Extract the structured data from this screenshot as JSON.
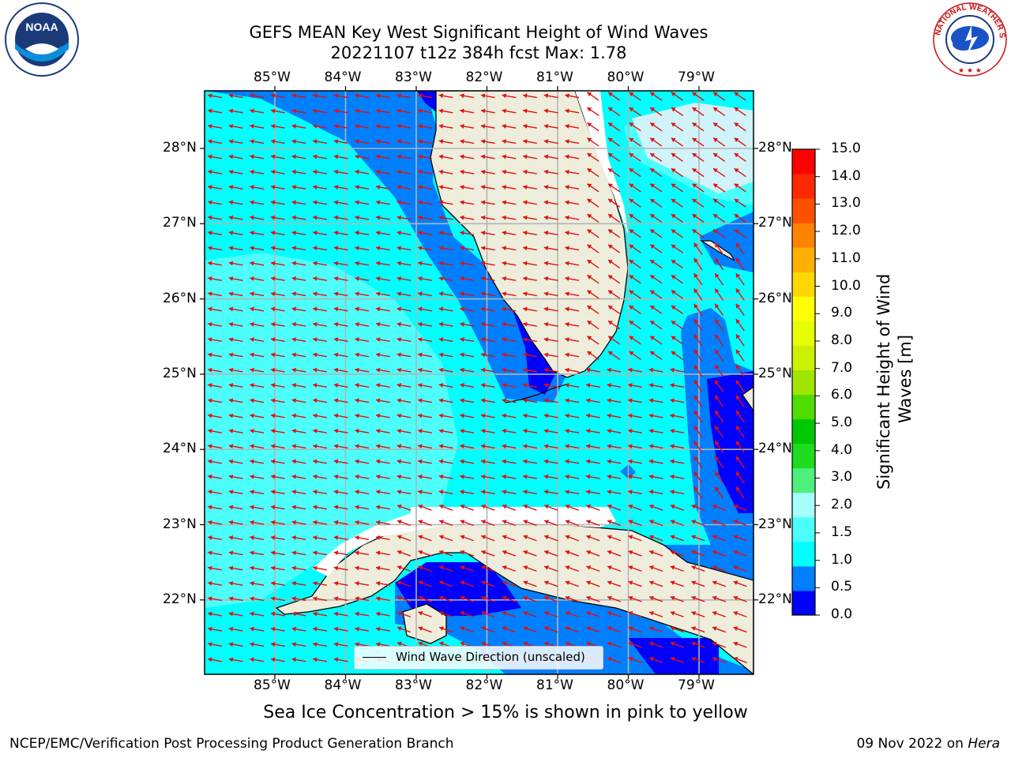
{
  "title": {
    "line1": "GEFS MEAN Key West Significant Height of Wind Waves",
    "line2": "20221107 t12z 384h fcst   Max: 1.78"
  },
  "logos": {
    "left_text": "NOAA",
    "left_ring_text": "NATIONAL OCEANIC AND ATMOSPHERIC ADMINISTRATION · U.S. DEPARTMENT OF COMMERCE",
    "right_ring_text": "NATIONAL WEATHER SERVICE"
  },
  "map": {
    "lon_labels": [
      "85°W",
      "84°W",
      "83°W",
      "82°W",
      "81°W",
      "80°W",
      "79°W"
    ],
    "lat_labels": [
      "28°N",
      "27°N",
      "26°N",
      "25°N",
      "24°N",
      "23°N",
      "22°N"
    ],
    "colors": {
      "ocean_base": "#00ffff",
      "ocean_light": "#4dfffb",
      "ocean_mid": "#007fff",
      "ocean_deep": "#0000ff",
      "land": "#eeeddc",
      "pink": "#cff3f8",
      "arrow": "#e01010",
      "grid": "#b4b4b4"
    },
    "legend_label": "Wind Wave Direction (unscaled)"
  },
  "colorbar": {
    "title": "Significant Height of Wind Waves [m]",
    "ticks": [
      "15.0",
      "14.0",
      "13.0",
      "12.0",
      "11.0",
      "10.0",
      "9.0",
      "8.0",
      "7.0",
      "6.0",
      "5.0",
      "4.0",
      "3.0",
      "2.0",
      "1.5",
      "1.0",
      "0.5",
      "0.0"
    ],
    "colors": [
      "#0000ff",
      "#007fff",
      "#00ffff",
      "#4dfffb",
      "#a6fffd",
      "#4cf07a",
      "#1edc1e",
      "#00c800",
      "#50dc00",
      "#a0e600",
      "#cdf000",
      "#e6ff00",
      "#ffff00",
      "#ffd700",
      "#ffaf00",
      "#ff8200",
      "#ff5000",
      "#ff2800",
      "#ff0000"
    ]
  },
  "caption": "Sea Ice Concentration > 15% is shown in pink to yellow",
  "footer": {
    "left": "NCEP/EMC/Verification Post Processing Product Generation Branch",
    "right_date": "09 Nov 2022 on ",
    "right_host": "Hera"
  }
}
